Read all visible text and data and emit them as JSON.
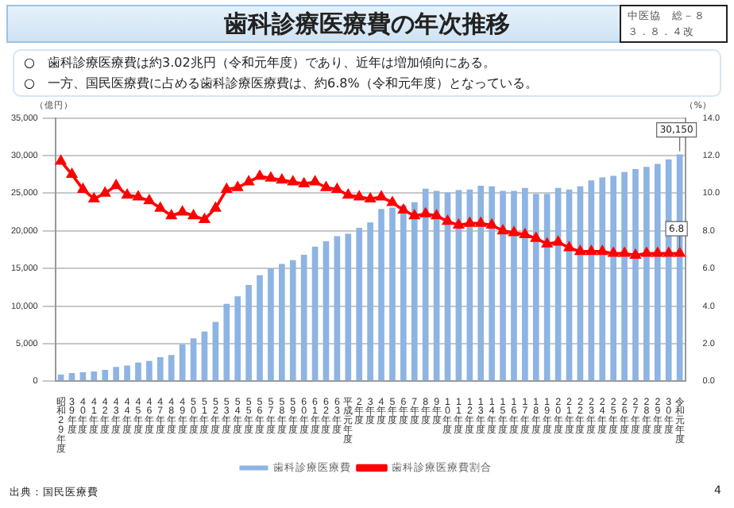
{
  "chart_data": {
    "type": "bar",
    "title": "歯科診療医療費の年次推移",
    "annotations": [
      "中医協　総－８",
      "３．８．４改",
      "○　歯科診療医療費は約3.02兆円（令和元年度）であり、近年は増加傾向にある。",
      "○　一方、国民医療費に占める歯科診療医療費は、約6.8%（令和元年度）となっている。",
      "出典：国民医療費",
      "4"
    ],
    "ylabel": "（億円）",
    "y2label": "（%）",
    "categories": [
      "昭和29年度",
      "39年度",
      "40年度",
      "41年度",
      "42年度",
      "43年度",
      "44年度",
      "45年度",
      "46年度",
      "47年度",
      "48年度",
      "49年度",
      "50年度",
      "51年度",
      "52年度",
      "53年度",
      "54年度",
      "55年度",
      "56年度",
      "57年度",
      "58年度",
      "59年度",
      "60年度",
      "61年度",
      "62年度",
      "63年度",
      "平成元年度",
      "2年度",
      "3年度",
      "4年度",
      "5年度",
      "6年度",
      "7年度",
      "8年度",
      "9年度",
      "10年度",
      "11年度",
      "12年度",
      "13年度",
      "14年度",
      "15年度",
      "16年度",
      "17年度",
      "18年度",
      "19年度",
      "20年度",
      "21年度",
      "22年度",
      "23年度",
      "24年度",
      "25年度",
      "26年度",
      "27年度",
      "28年度",
      "29年度",
      "30年度",
      "令和元年度"
    ],
    "series": [
      {
        "name": "歯科診療医療費",
        "color": "#8db4e2",
        "values": [
          900,
          1100,
          1200,
          1300,
          1500,
          1900,
          2100,
          2500,
          2700,
          3200,
          3500,
          4900,
          5700,
          6600,
          7900,
          10300,
          11300,
          12800,
          14100,
          15000,
          15600,
          16100,
          16800,
          17900,
          18600,
          19300,
          19600,
          20400,
          21100,
          22900,
          23100,
          23400,
          23800,
          25600,
          25300,
          25100,
          25400,
          25500,
          26000,
          25900,
          25300,
          25300,
          25700,
          24900,
          24900,
          25700,
          25500,
          25900,
          26700,
          27100,
          27300,
          27800,
          28200,
          28500,
          28900,
          29500,
          30150
        ],
        "value_labels": [
          null,
          null,
          null,
          null,
          null,
          null,
          null,
          null,
          null,
          null,
          null,
          null,
          null,
          null,
          null,
          null,
          null,
          null,
          null,
          null,
          null,
          null,
          null,
          null,
          null,
          null,
          null,
          null,
          null,
          null,
          null,
          null,
          null,
          null,
          null,
          null,
          null,
          null,
          null,
          null,
          null,
          null,
          null,
          null,
          null,
          null,
          null,
          null,
          null,
          null,
          null,
          null,
          null,
          null,
          null,
          null,
          "30,150"
        ]
      },
      {
        "name": "歯科診療医療費割合",
        "type": "line",
        "axis": "y2",
        "color": "#ff0000",
        "marker": "triangle",
        "values": [
          11.7,
          11.0,
          10.2,
          9.7,
          10.0,
          10.4,
          9.9,
          9.8,
          9.6,
          9.2,
          8.8,
          9.0,
          8.8,
          8.6,
          9.2,
          10.2,
          10.3,
          10.6,
          10.9,
          10.8,
          10.7,
          10.6,
          10.5,
          10.6,
          10.3,
          10.2,
          9.9,
          9.8,
          9.7,
          9.8,
          9.5,
          9.1,
          8.8,
          8.9,
          8.8,
          8.5,
          8.3,
          8.4,
          8.4,
          8.3,
          8.0,
          7.9,
          7.8,
          7.6,
          7.3,
          7.4,
          7.1,
          6.9,
          6.9,
          6.9,
          6.8,
          6.8,
          6.7,
          6.8,
          6.8,
          6.8,
          6.8
        ],
        "value_labels": [
          null,
          null,
          null,
          null,
          null,
          null,
          null,
          null,
          null,
          null,
          null,
          null,
          null,
          null,
          null,
          null,
          null,
          null,
          null,
          null,
          null,
          null,
          null,
          null,
          null,
          null,
          null,
          null,
          null,
          null,
          null,
          null,
          null,
          null,
          null,
          null,
          null,
          null,
          null,
          null,
          null,
          null,
          null,
          null,
          null,
          null,
          null,
          null,
          null,
          null,
          null,
          null,
          null,
          null,
          null,
          null,
          "6.8"
        ]
      }
    ],
    "ylim": [
      0,
      35000
    ],
    "yticks": [
      {
        "value": 0,
        "label": "0"
      },
      {
        "value": 5000,
        "label": "5,000"
      },
      {
        "value": 10000,
        "label": "10,000"
      },
      {
        "value": 15000,
        "label": "15,000"
      },
      {
        "value": 20000,
        "label": "20,000"
      },
      {
        "value": 25000,
        "label": "25,000"
      },
      {
        "value": 30000,
        "label": "30,000"
      },
      {
        "value": 35000,
        "label": "35,000"
      }
    ],
    "y2lim": [
      0,
      14
    ],
    "y2ticks": [
      {
        "value": 0,
        "label": "0.0"
      },
      {
        "value": 2,
        "label": "2.0"
      },
      {
        "value": 4,
        "label": "4.0"
      },
      {
        "value": 6,
        "label": "6.0"
      },
      {
        "value": 8,
        "label": "8.0"
      },
      {
        "value": 10,
        "label": "10.0"
      },
      {
        "value": 12,
        "label": "12.0"
      },
      {
        "value": 14,
        "label": "14.0"
      }
    ],
    "grid": "y",
    "legend": "bottom"
  }
}
